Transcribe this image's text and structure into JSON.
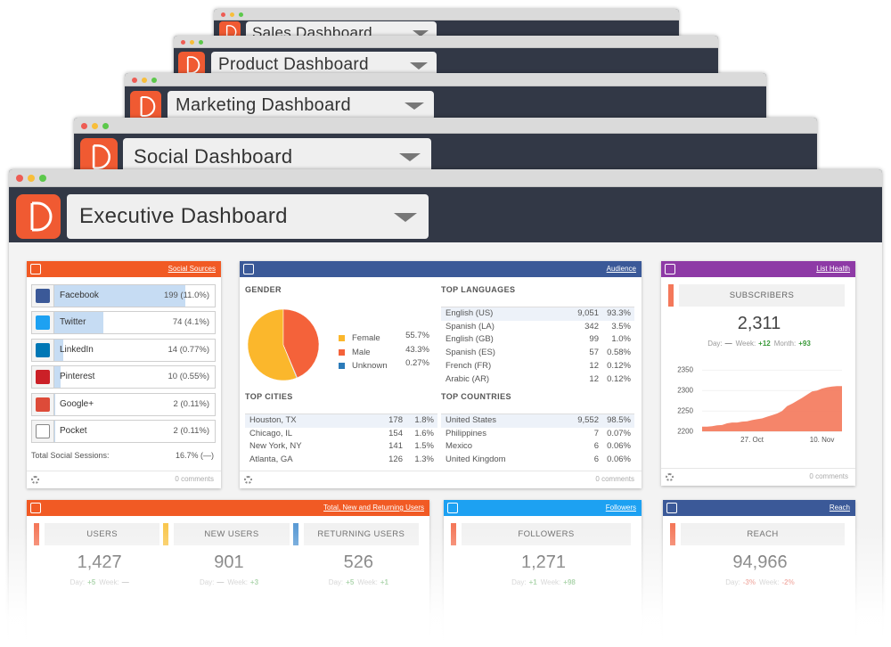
{
  "windows": [
    {
      "title": "Sales Dashboard"
    },
    {
      "title": "Product Dashboard"
    },
    {
      "title": "Marketing Dashboard"
    },
    {
      "title": "Social Dashboard"
    },
    {
      "title": "Executive Dashboard"
    }
  ],
  "widgets": {
    "social_sources": {
      "link": "Social Sources",
      "color": "#f15a24",
      "rows": [
        {
          "name": "Facebook",
          "sessions": 199,
          "label": "199 (11.0%)"
        },
        {
          "name": "Twitter",
          "sessions": 74,
          "label": "74 (4.1%)"
        },
        {
          "name": "LinkedIn",
          "sessions": 14,
          "label": "14 (0.77%)"
        },
        {
          "name": "Pinterest",
          "sessions": 10,
          "label": "10 (0.55%)"
        },
        {
          "name": "Google+",
          "sessions": 2,
          "label": "2 (0.11%)"
        },
        {
          "name": "Pocket",
          "sessions": 2,
          "label": "2 (0.11%)"
        }
      ],
      "total_label": "Total Social Sessions:",
      "total_value": "16.7% (—)",
      "comments": "0 comments"
    },
    "audience": {
      "link": "Audience",
      "color": "#3b5998",
      "gender": {
        "title": "GENDER",
        "type": "pie",
        "categories": [
          "Female",
          "Male",
          "Unknown"
        ],
        "values": [
          55.7,
          43.3,
          0.27
        ],
        "value_labels": [
          "55.7%",
          "43.3%",
          "0.27%"
        ],
        "colors": [
          "#fbb72c",
          "#f4623a",
          "#2b7bb9"
        ]
      },
      "languages": {
        "title": "TOP LANGUAGES",
        "rows": [
          [
            "English (US)",
            "9,051",
            "93.3%"
          ],
          [
            "Spanish (LA)",
            "342",
            "3.5%"
          ],
          [
            "English (GB)",
            "99",
            "1.0%"
          ],
          [
            "Spanish (ES)",
            "57",
            "0.58%"
          ],
          [
            "French (FR)",
            "12",
            "0.12%"
          ],
          [
            "Arabic (AR)",
            "12",
            "0.12%"
          ]
        ]
      },
      "cities": {
        "title": "TOP CITIES",
        "rows": [
          [
            "Houston, TX",
            "178",
            "1.8%"
          ],
          [
            "Chicago, IL",
            "154",
            "1.6%"
          ],
          [
            "New York, NY",
            "141",
            "1.5%"
          ],
          [
            "Atlanta, GA",
            "126",
            "1.3%"
          ]
        ]
      },
      "countries": {
        "title": "TOP COUNTRIES",
        "rows": [
          [
            "United States",
            "9,552",
            "98.5%"
          ],
          [
            "Philippines",
            "7",
            "0.07%"
          ],
          [
            "Mexico",
            "6",
            "0.06%"
          ],
          [
            "United Kingdom",
            "6",
            "0.06%"
          ]
        ]
      },
      "comments": "0 comments"
    },
    "list_health": {
      "link": "List Health",
      "color": "#8e3aa6",
      "metrics": [
        {
          "name": "SUBSCRIBERS",
          "value": "2,311",
          "color": "#f4785a",
          "changes": [
            {
              "label": "Day:",
              "value": "—"
            },
            {
              "label": "Week:",
              "value": "+12"
            },
            {
              "label": "Month:",
              "value": "+93"
            }
          ]
        }
      ],
      "chart": {
        "type": "area",
        "color": "#f4785a",
        "categories": [
          null,
          null,
          null,
          null,
          null,
          null,
          null,
          null,
          null,
          null,
          "27. Oct",
          null,
          null,
          null,
          null,
          null,
          null,
          null,
          null,
          null,
          null,
          null,
          null,
          null,
          "10. Nov",
          null,
          null,
          null,
          null
        ],
        "values": [
          2212,
          2212,
          2213,
          2215,
          2216,
          2220,
          2222,
          2222,
          2224,
          2225,
          2228,
          2230,
          2232,
          2236,
          2240,
          2244,
          2250,
          2262,
          2268,
          2275,
          2282,
          2290,
          2298,
          2300,
          2305,
          2308,
          2310,
          2311,
          2311
        ],
        "ylim": [
          2183,
          2366
        ],
        "yticks": [
          2200,
          2250,
          2300,
          2350
        ],
        "grid": true
      },
      "comments": "0 comments"
    },
    "users": {
      "link": "Total, New and Returning Users",
      "color": "#f15a24",
      "metrics": [
        {
          "name": "USERS",
          "value": "1,427",
          "color": "#f4785a",
          "changes": [
            {
              "label": "Day:",
              "value": "+5"
            },
            {
              "label": "Week:",
              "value": "—"
            }
          ]
        },
        {
          "name": "NEW USERS",
          "value": "901",
          "color": "#f9c74f",
          "changes": [
            {
              "label": "Day:",
              "value": "—"
            },
            {
              "label": "Week:",
              "value": "+3"
            }
          ]
        },
        {
          "name": "RETURNING USERS",
          "value": "526",
          "color": "#5b9bd5",
          "changes": [
            {
              "label": "Day:",
              "value": "+5"
            },
            {
              "label": "Week:",
              "value": "+1"
            }
          ]
        }
      ]
    },
    "followers": {
      "link": "Followers",
      "color": "#1da1f2",
      "metrics": [
        {
          "name": "FOLLOWERS",
          "value": "1,271",
          "color": "#f4785a",
          "changes": [
            {
              "label": "Day:",
              "value": "+1"
            },
            {
              "label": "Week:",
              "value": "+98"
            }
          ]
        }
      ]
    },
    "reach": {
      "link": "Reach",
      "color": "#3b5998",
      "metrics": [
        {
          "name": "REACH",
          "value": "94,966",
          "color": "#f4785a",
          "changes": [
            {
              "label": "Day:",
              "value": "-3%"
            },
            {
              "label": "Week:",
              "value": "-2%"
            }
          ]
        }
      ]
    }
  }
}
